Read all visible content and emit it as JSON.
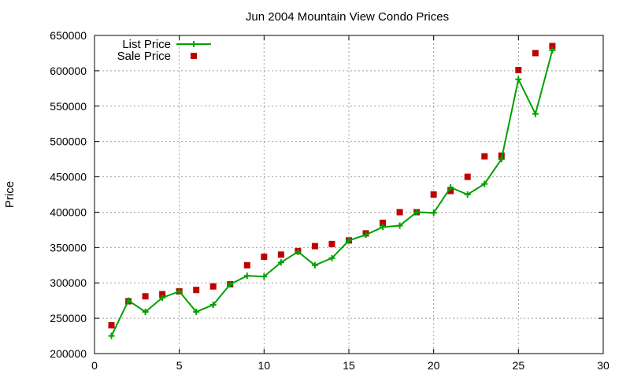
{
  "chart_data": {
    "type": "line",
    "title": "Jun 2004 Mountain View Condo Prices",
    "xlabel": "",
    "ylabel": "Price",
    "xlim": [
      0,
      30
    ],
    "ylim": [
      200000,
      650000
    ],
    "x_ticks": [
      "0",
      "5",
      "10",
      "15",
      "20",
      "25",
      "30"
    ],
    "y_ticks": [
      "200000",
      "250000",
      "300000",
      "350000",
      "400000",
      "450000",
      "500000",
      "550000",
      "600000",
      "650000"
    ],
    "grid": true,
    "legend_position": "top-left",
    "series": [
      {
        "name": "List Price",
        "style": "line+cross",
        "color": "#00a000",
        "x": [
          1,
          2,
          3,
          4,
          5,
          6,
          7,
          8,
          9,
          10,
          11,
          12,
          13,
          14,
          15,
          16,
          17,
          18,
          19,
          20,
          21,
          22,
          23,
          24,
          25,
          26,
          27
        ],
        "y": [
          225000,
          275000,
          259000,
          279000,
          288000,
          259000,
          269000,
          298000,
          310000,
          309000,
          329000,
          344000,
          325000,
          335000,
          360000,
          368000,
          379000,
          381000,
          400000,
          399000,
          435000,
          425000,
          440000,
          475000,
          588000,
          539000,
          629000
        ]
      },
      {
        "name": "Sale Price",
        "style": "square-marker",
        "color": "#c00000",
        "x": [
          1,
          2,
          3,
          4,
          5,
          6,
          7,
          8,
          9,
          10,
          11,
          12,
          13,
          14,
          15,
          16,
          17,
          18,
          19,
          20,
          21,
          22,
          23,
          24,
          25,
          26,
          27
        ],
        "y": [
          240000,
          274000,
          281000,
          284000,
          288000,
          290000,
          295000,
          298000,
          325000,
          337000,
          340000,
          345000,
          352000,
          355000,
          360000,
          370000,
          385000,
          400000,
          400000,
          425000,
          430000,
          450000,
          479000,
          480000,
          601000,
          625000,
          635000
        ]
      }
    ]
  }
}
